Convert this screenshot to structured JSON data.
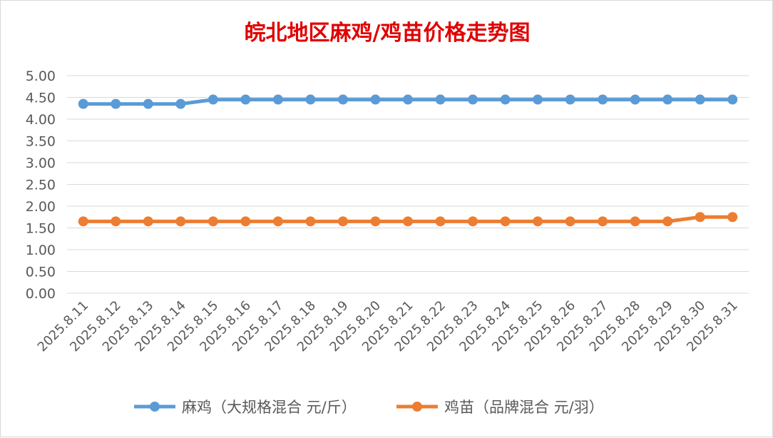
{
  "chart_data": {
    "type": "line",
    "title": "皖北地区麻鸡/鸡苗价格走势图",
    "xlabel": "",
    "ylabel": "",
    "ylim": [
      0,
      5
    ],
    "yticks": [
      "0.00",
      "0.50",
      "1.00",
      "1.50",
      "2.00",
      "2.50",
      "3.00",
      "3.50",
      "4.00",
      "4.50",
      "5.00"
    ],
    "grid": true,
    "legend_position": "bottom",
    "categories": [
      "2025.8.11",
      "2025.8.12",
      "2025.8.13",
      "2025.8.14",
      "2025.8.15",
      "2025.8.16",
      "2025.8.17",
      "2025.8.18",
      "2025.8.19",
      "2025.8.20",
      "2025.8.21",
      "2025.8.22",
      "2025.8.23",
      "2025.8.24",
      "2025.8.25",
      "2025.8.26",
      "2025.8.27",
      "2025.8.28",
      "2025.8.29",
      "2025.8.30",
      "2025.8.31"
    ],
    "series": [
      {
        "name": "麻鸡（大规格混合 元/斤）",
        "color": "#5b9bd5",
        "values": [
          4.35,
          4.35,
          4.35,
          4.35,
          4.45,
          4.45,
          4.45,
          4.45,
          4.45,
          4.45,
          4.45,
          4.45,
          4.45,
          4.45,
          4.45,
          4.45,
          4.45,
          4.45,
          4.45,
          4.45,
          4.45
        ]
      },
      {
        "name": "鸡苗（品牌混合 元/羽）",
        "color": "#ed7d31",
        "values": [
          1.65,
          1.65,
          1.65,
          1.65,
          1.65,
          1.65,
          1.65,
          1.65,
          1.65,
          1.65,
          1.65,
          1.65,
          1.65,
          1.65,
          1.65,
          1.65,
          1.65,
          1.65,
          1.65,
          1.75,
          1.75
        ]
      }
    ]
  }
}
